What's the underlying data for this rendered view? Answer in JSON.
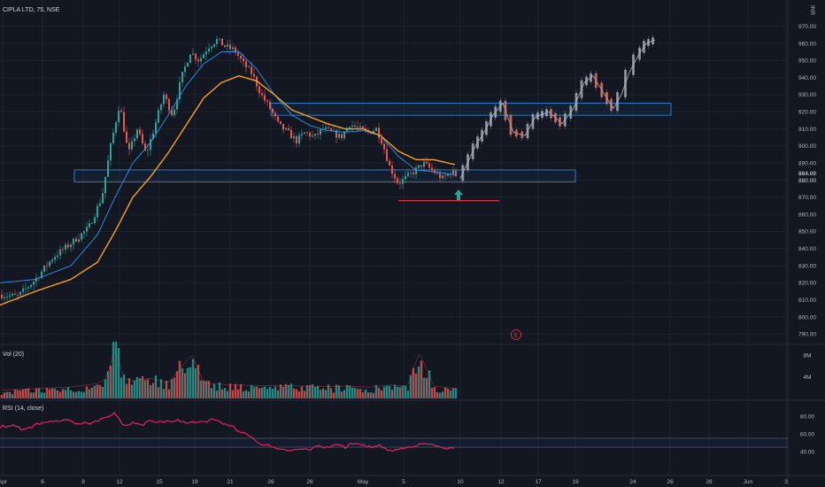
{
  "header": {
    "symbol_label": "CIPLA LTD, 75, NSE"
  },
  "price_axis": {
    "currency": "INR",
    "current_price": "884.00",
    "current_price_secondary": "880.00"
  },
  "event_marker": {
    "label": "E"
  },
  "volume_pane": {
    "label": "Vol (20)",
    "ticks": [
      "8M",
      "4M"
    ],
    "ymax": 9.5
  },
  "rsi_pane": {
    "label": "RSI (14, close)",
    "ticks": [
      "80.00",
      "60.00",
      "40.00"
    ],
    "upper_band": 55,
    "lower_band": 45
  },
  "colors": {
    "up": "#26a69a",
    "down": "#ef5350",
    "ema_fast": "#2196f3",
    "ema_slow": "#f7a21b",
    "rsi": "#e91e63",
    "zone": "#2196f3",
    "support": "#f23645",
    "arrow": "#26a69a",
    "projection": "#b2b5be"
  },
  "chart_data": {
    "type": "candlestick",
    "ylim": [
      785,
      975
    ],
    "price_ticks": [
      790,
      800,
      810,
      820,
      830,
      840,
      850,
      860,
      870,
      880,
      890,
      900,
      910,
      920,
      930,
      940,
      950,
      960,
      970
    ],
    "x_ticks": [
      "Apr",
      "6",
      "8",
      "12",
      "15",
      "19",
      "21",
      "26",
      "28",
      "May",
      "5",
      "10",
      "12",
      "17",
      "19",
      "24",
      "26",
      "28",
      "Jun",
      "3"
    ],
    "zones": [
      {
        "name": "support zone",
        "from": 879,
        "to": 886
      },
      {
        "name": "resistance zone",
        "from": 918,
        "to": 925
      }
    ],
    "support_line": 868,
    "price_path_anchors": [
      [
        0,
        813
      ],
      [
        20,
        812
      ],
      [
        40,
        822
      ],
      [
        60,
        835
      ],
      [
        80,
        843
      ],
      [
        100,
        852
      ],
      [
        115,
        870
      ],
      [
        125,
        900
      ],
      [
        135,
        925
      ],
      [
        145,
        895
      ],
      [
        155,
        910
      ],
      [
        165,
        895
      ],
      [
        175,
        912
      ],
      [
        185,
        930
      ],
      [
        195,
        918
      ],
      [
        205,
        940
      ],
      [
        215,
        955
      ],
      [
        225,
        950
      ],
      [
        235,
        958
      ],
      [
        245,
        962
      ],
      [
        255,
        958
      ],
      [
        265,
        956
      ],
      [
        275,
        948
      ],
      [
        285,
        942
      ],
      [
        295,
        930
      ],
      [
        305,
        922
      ],
      [
        315,
        912
      ],
      [
        325,
        908
      ],
      [
        335,
        903
      ],
      [
        345,
        908
      ],
      [
        355,
        905
      ],
      [
        365,
        910
      ],
      [
        375,
        908
      ],
      [
        385,
        905
      ],
      [
        395,
        913
      ],
      [
        405,
        910
      ],
      [
        415,
        908
      ],
      [
        425,
        910
      ],
      [
        432,
        902
      ],
      [
        440,
        888
      ],
      [
        450,
        878
      ],
      [
        460,
        882
      ],
      [
        470,
        886
      ],
      [
        478,
        890
      ],
      [
        490,
        885
      ],
      [
        500,
        881
      ],
      [
        510,
        885
      ],
      [
        515,
        883
      ]
    ],
    "ema_fast": [
      [
        0,
        820
      ],
      [
        40,
        822
      ],
      [
        80,
        830
      ],
      [
        110,
        848
      ],
      [
        130,
        870
      ],
      [
        150,
        890
      ],
      [
        170,
        902
      ],
      [
        190,
        918
      ],
      [
        210,
        935
      ],
      [
        230,
        948
      ],
      [
        250,
        955
      ],
      [
        270,
        955
      ],
      [
        290,
        945
      ],
      [
        310,
        930
      ],
      [
        330,
        918
      ],
      [
        350,
        912
      ],
      [
        370,
        909
      ],
      [
        390,
        908
      ],
      [
        410,
        909
      ],
      [
        430,
        906
      ],
      [
        450,
        894
      ],
      [
        470,
        886
      ],
      [
        490,
        885
      ],
      [
        515,
        883
      ]
    ],
    "ema_slow": [
      [
        0,
        807
      ],
      [
        40,
        815
      ],
      [
        80,
        822
      ],
      [
        110,
        832
      ],
      [
        130,
        850
      ],
      [
        150,
        870
      ],
      [
        170,
        882
      ],
      [
        190,
        896
      ],
      [
        210,
        912
      ],
      [
        230,
        928
      ],
      [
        250,
        937
      ],
      [
        270,
        941
      ],
      [
        290,
        938
      ],
      [
        310,
        930
      ],
      [
        330,
        921
      ],
      [
        350,
        917
      ],
      [
        370,
        913
      ],
      [
        390,
        910
      ],
      [
        410,
        910
      ],
      [
        430,
        906
      ],
      [
        450,
        897
      ],
      [
        470,
        892
      ],
      [
        490,
        892
      ],
      [
        515,
        889
      ]
    ],
    "projection_path": [
      [
        520,
        881
      ],
      [
        537,
        900
      ],
      [
        547,
        908
      ],
      [
        557,
        918
      ],
      [
        568,
        925
      ],
      [
        580,
        908
      ],
      [
        593,
        906
      ],
      [
        605,
        917
      ],
      [
        620,
        920
      ],
      [
        635,
        913
      ],
      [
        648,
        922
      ],
      [
        660,
        937
      ],
      [
        670,
        941
      ],
      [
        683,
        930
      ],
      [
        693,
        922
      ],
      [
        702,
        930
      ],
      [
        711,
        943
      ],
      [
        720,
        952
      ],
      [
        730,
        960
      ],
      [
        740,
        962
      ]
    ],
    "rsi_anchors": [
      [
        0,
        68
      ],
      [
        15,
        70
      ],
      [
        25,
        65
      ],
      [
        35,
        68
      ],
      [
        45,
        72
      ],
      [
        60,
        75
      ],
      [
        75,
        75
      ],
      [
        90,
        72
      ],
      [
        100,
        72
      ],
      [
        110,
        75
      ],
      [
        120,
        80
      ],
      [
        130,
        83
      ],
      [
        140,
        68
      ],
      [
        150,
        73
      ],
      [
        160,
        70
      ],
      [
        170,
        75
      ],
      [
        180,
        73
      ],
      [
        190,
        74
      ],
      [
        200,
        76
      ],
      [
        210,
        72
      ],
      [
        220,
        74
      ],
      [
        230,
        73
      ],
      [
        240,
        76
      ],
      [
        250,
        73
      ],
      [
        260,
        70
      ],
      [
        270,
        63
      ],
      [
        280,
        60
      ],
      [
        290,
        50
      ],
      [
        300,
        48
      ],
      [
        310,
        45
      ],
      [
        320,
        42
      ],
      [
        330,
        41
      ],
      [
        340,
        44
      ],
      [
        350,
        42
      ],
      [
        360,
        46
      ],
      [
        370,
        44
      ],
      [
        380,
        48
      ],
      [
        390,
        45
      ],
      [
        400,
        50
      ],
      [
        410,
        47
      ],
      [
        420,
        45
      ],
      [
        430,
        47
      ],
      [
        440,
        40
      ],
      [
        450,
        42
      ],
      [
        460,
        44
      ],
      [
        470,
        46
      ],
      [
        480,
        50
      ],
      [
        490,
        47
      ],
      [
        500,
        44
      ],
      [
        510,
        43
      ],
      [
        515,
        42
      ]
    ],
    "volume_anchors": [
      [
        0,
        1.2
      ],
      [
        40,
        1.5
      ],
      [
        80,
        1.8
      ],
      [
        110,
        2.5
      ],
      [
        120,
        3.5
      ],
      [
        130,
        9.3
      ],
      [
        140,
        3.5
      ],
      [
        150,
        3.0
      ],
      [
        170,
        3.5
      ],
      [
        190,
        2.6
      ],
      [
        217,
        8.2
      ],
      [
        230,
        2.6
      ],
      [
        260,
        2.2
      ],
      [
        300,
        2.1
      ],
      [
        340,
        2.0
      ],
      [
        380,
        1.9
      ],
      [
        420,
        1.8
      ],
      [
        440,
        2.2
      ],
      [
        460,
        2.0
      ],
      [
        474,
        8.6
      ],
      [
        490,
        2.0
      ],
      [
        515,
        1.5
      ]
    ]
  }
}
